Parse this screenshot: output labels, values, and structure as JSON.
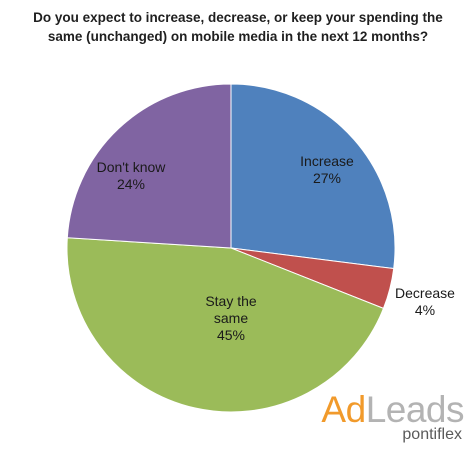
{
  "chart_data": {
    "type": "pie",
    "title_lines": [
      "Do you expect to increase, decrease, or keep your spending the",
      "same (unchanged) on mobile media in the next 12 months?"
    ],
    "slices": [
      {
        "label_lines": [
          "Increase"
        ],
        "pct_label": "27%",
        "value": 27,
        "color": "#4f81bd"
      },
      {
        "label_lines": [
          "Decrease"
        ],
        "pct_label": "4%",
        "value": 4,
        "color": "#c0504d"
      },
      {
        "label_lines": [
          "Stay the",
          "same"
        ],
        "pct_label": "45%",
        "value": 45,
        "color": "#9bbb59"
      },
      {
        "label_lines": [
          "Don't know"
        ],
        "pct_label": "24%",
        "value": 24,
        "color": "#8064a2"
      }
    ]
  },
  "brand": {
    "ad": "Ad",
    "leads": "Leads",
    "sub": "pontiflex"
  }
}
